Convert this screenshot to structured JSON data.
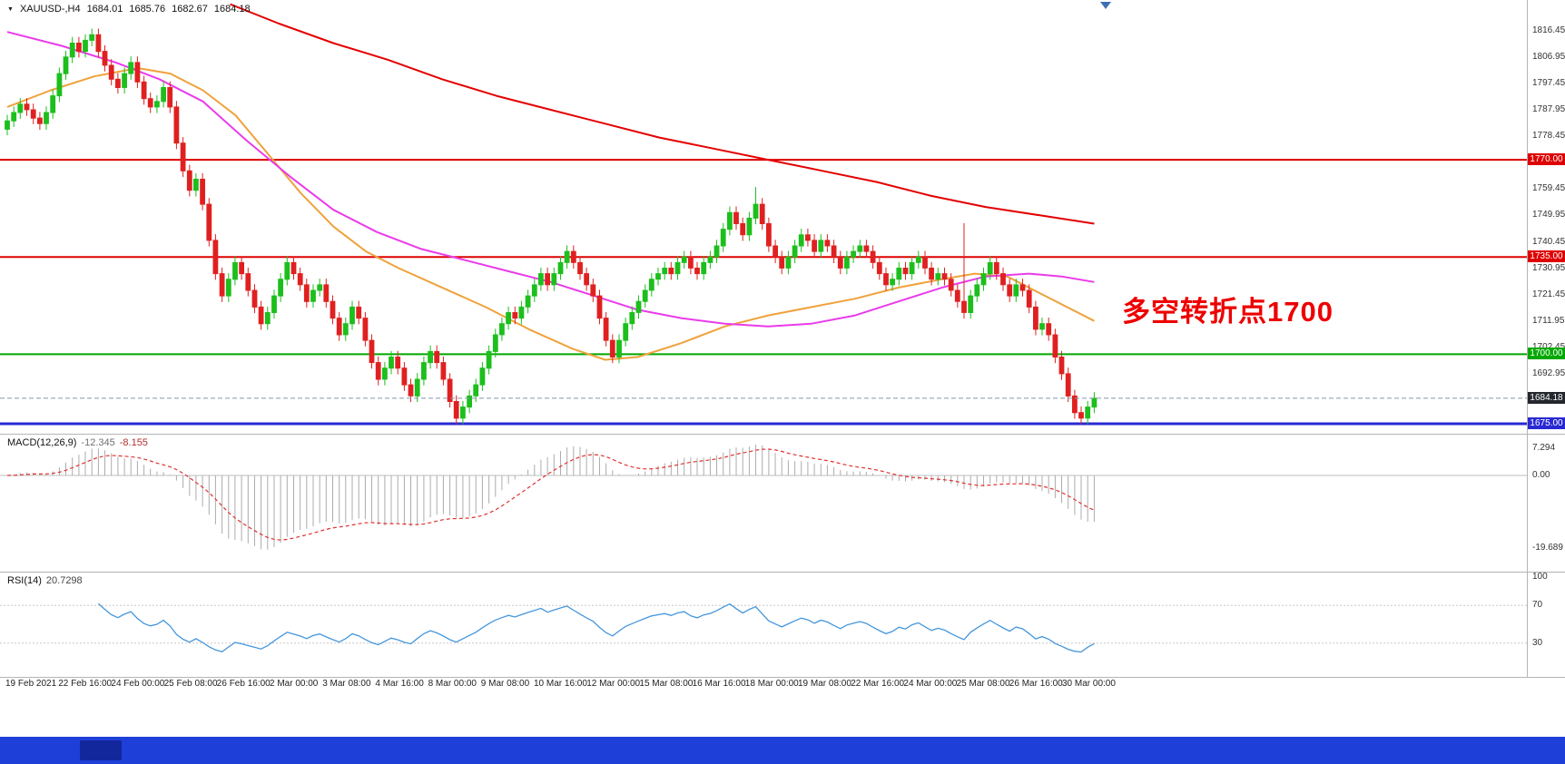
{
  "header": {
    "symbol_period": "XAUUSD-,H4",
    "open": "1684.01",
    "high": "1685.76",
    "low": "1682.67",
    "close": "1684.18"
  },
  "indicators": {
    "macd_name": "MACD(12,26,9)",
    "macd_value": "-12.345",
    "macd_signal": "-8.155",
    "rsi_name": "RSI(14)",
    "rsi_value": "20.7298"
  },
  "annotation": {
    "text": "多空转折点1700",
    "color": "#ED0000"
  },
  "bottom_bar": {
    "color": "#1E3FD8",
    "item_color": "#12279B"
  },
  "chart_data": [
    {
      "type": "candlestick",
      "title": "XAUUSD- H4",
      "instrument": "XAUUSD-",
      "timeframe": "H4",
      "ohlc_display": {
        "open": 1684.01,
        "high": 1685.76,
        "low": 1682.67,
        "close": 1684.18
      },
      "ylim": [
        1671.4,
        1827.5
      ],
      "y_ticks": [
        1816.45,
        1806.95,
        1797.45,
        1787.95,
        1778.45,
        1759.45,
        1749.95,
        1740.45,
        1730.95,
        1721.45,
        1711.95,
        1702.45,
        1692.95
      ],
      "x_labels": [
        "19 Feb 2021",
        "22 Feb 16:00",
        "24 Feb 00:00",
        "25 Feb 08:00",
        "26 Feb 16:00",
        "2 Mar 00:00",
        "3 Mar 08:00",
        "4 Mar 16:00",
        "8 Mar 00:00",
        "9 Mar 08:00",
        "10 Mar 16:00",
        "12 Mar 00:00",
        "15 Mar 08:00",
        "16 Mar 16:00",
        "18 Mar 00:00",
        "19 Mar 08:00",
        "22 Mar 16:00",
        "24 Mar 00:00",
        "25 Mar 08:00",
        "26 Mar 16:00",
        "30 Mar 00:00"
      ],
      "first_open": 1781,
      "default_wick": 2.2,
      "extra_wicks": {
        "115": [
          4,
          0
        ],
        "147": [
          26,
          0
        ]
      },
      "closes": [
        1784,
        1787,
        1790,
        1788,
        1785,
        1783,
        1787,
        1793,
        1801,
        1807,
        1812,
        1809,
        1813,
        1815,
        1809,
        1804,
        1799,
        1796,
        1801,
        1805,
        1798,
        1792,
        1789,
        1791,
        1796,
        1789,
        1776,
        1766,
        1759,
        1763,
        1754,
        1741,
        1729,
        1721,
        1727,
        1733,
        1729,
        1723,
        1717,
        1711,
        1715,
        1721,
        1727,
        1733,
        1729,
        1725,
        1719,
        1723,
        1725,
        1719,
        1713,
        1707,
        1711,
        1717,
        1713,
        1705,
        1697,
        1691,
        1695,
        1699,
        1695,
        1689,
        1685,
        1691,
        1697,
        1701,
        1697,
        1691,
        1683,
        1677,
        1681,
        1685,
        1689,
        1695,
        1701,
        1707,
        1711,
        1715,
        1713,
        1717,
        1721,
        1725,
        1729,
        1725,
        1729,
        1733,
        1737,
        1733,
        1729,
        1725,
        1721,
        1713,
        1705,
        1699,
        1705,
        1711,
        1715,
        1719,
        1723,
        1727,
        1729,
        1731,
        1729,
        1733,
        1735,
        1731,
        1729,
        1733,
        1735,
        1739,
        1745,
        1751,
        1747,
        1743,
        1749,
        1754,
        1747,
        1739,
        1735,
        1731,
        1735,
        1739,
        1743,
        1741,
        1737,
        1741,
        1739,
        1735,
        1731,
        1735,
        1737,
        1739,
        1737,
        1733,
        1729,
        1725,
        1727,
        1731,
        1729,
        1733,
        1735,
        1731,
        1727,
        1729,
        1727,
        1723,
        1719,
        1715,
        1721,
        1725,
        1729,
        1733,
        1729,
        1725,
        1721,
        1725,
        1723,
        1717,
        1709,
        1711,
        1707,
        1699,
        1693,
        1685,
        1679,
        1677,
        1681,
        1684.18
      ],
      "candle_colors": {
        "bull": "#1CBF1C",
        "bear": "#E02020"
      },
      "levels": [
        {
          "price": 1770.0,
          "label": "1770.00",
          "color": "#DE0000",
          "width": 2
        },
        {
          "price": 1735.0,
          "label": "1735.00",
          "color": "#DE0000",
          "width": 2
        },
        {
          "price": 1700.0,
          "label": "1700.00",
          "color": "#00A800",
          "width": 2
        },
        {
          "price": 1675.0,
          "label": "1675.00",
          "color": "#2929D4",
          "width": 3
        }
      ],
      "current_price": {
        "price": 1684.18,
        "label": "1684.18",
        "line_color": "#8496AA",
        "tag_color": "#24272B"
      },
      "moving_averages": [
        {
          "name": "ma-fast-orange",
          "color": "#EFA23B",
          "anchors": [
            [
              0,
              1789
            ],
            [
              0.04,
              1795
            ],
            [
              0.08,
              1800
            ],
            [
              0.12,
              1803
            ],
            [
              0.15,
              1801
            ],
            [
              0.18,
              1795
            ],
            [
              0.21,
              1786
            ],
            [
              0.24,
              1772
            ],
            [
              0.27,
              1758
            ],
            [
              0.3,
              1746
            ],
            [
              0.33,
              1737
            ],
            [
              0.36,
              1731
            ],
            [
              0.4,
              1724
            ],
            [
              0.44,
              1717
            ],
            [
              0.48,
              1709
            ],
            [
              0.52,
              1702
            ],
            [
              0.55,
              1698
            ],
            [
              0.58,
              1699
            ],
            [
              0.62,
              1704
            ],
            [
              0.66,
              1710
            ],
            [
              0.7,
              1714
            ],
            [
              0.74,
              1717
            ],
            [
              0.78,
              1720
            ],
            [
              0.82,
              1724
            ],
            [
              0.86,
              1727
            ],
            [
              0.89,
              1729
            ],
            [
              0.92,
              1728
            ],
            [
              0.95,
              1722
            ],
            [
              1,
              1712
            ]
          ]
        },
        {
          "name": "ma-mid-magenta",
          "color": "#EA3BEA",
          "anchors": [
            [
              0,
              1816
            ],
            [
              0.05,
              1811
            ],
            [
              0.1,
              1805
            ],
            [
              0.14,
              1799
            ],
            [
              0.18,
              1791
            ],
            [
              0.22,
              1777
            ],
            [
              0.26,
              1764
            ],
            [
              0.3,
              1752
            ],
            [
              0.34,
              1744
            ],
            [
              0.38,
              1738
            ],
            [
              0.42,
              1734
            ],
            [
              0.46,
              1730
            ],
            [
              0.5,
              1726
            ],
            [
              0.54,
              1721
            ],
            [
              0.58,
              1716
            ],
            [
              0.62,
              1713
            ],
            [
              0.66,
              1711
            ],
            [
              0.7,
              1710
            ],
            [
              0.74,
              1711
            ],
            [
              0.78,
              1714
            ],
            [
              0.82,
              1719
            ],
            [
              0.86,
              1724
            ],
            [
              0.9,
              1728
            ],
            [
              0.94,
              1729
            ],
            [
              0.97,
              1728
            ],
            [
              1,
              1726
            ]
          ]
        },
        {
          "name": "ma-slow-red",
          "color": "#E40000",
          "anchors": [
            [
              0.205,
              1826
            ],
            [
              0.25,
              1819
            ],
            [
              0.3,
              1812
            ],
            [
              0.35,
              1806
            ],
            [
              0.4,
              1799
            ],
            [
              0.45,
              1793
            ],
            [
              0.5,
              1788
            ],
            [
              0.55,
              1783
            ],
            [
              0.6,
              1778
            ],
            [
              0.65,
              1774
            ],
            [
              0.7,
              1770
            ],
            [
              0.75,
              1766
            ],
            [
              0.8,
              1762
            ],
            [
              0.85,
              1757
            ],
            [
              0.9,
              1753
            ],
            [
              0.95,
              1750
            ],
            [
              1,
              1747
            ]
          ]
        }
      ]
    },
    {
      "type": "macd_histogram",
      "label": "MACD(12,26,9)",
      "params": [
        12,
        26,
        9
      ],
      "value": -12.345,
      "signal_value": -8.155,
      "y_ticks": [
        7.294,
        0,
        -19.689
      ],
      "hist_color": "#ACACAC",
      "signal_color": "#E03030",
      "derived_from": "closes"
    },
    {
      "type": "rsi_line",
      "label": "RSI(14)",
      "period": 14,
      "value": 20.7298,
      "y_ticks": [
        100,
        70,
        30
      ],
      "guides": [
        70,
        30
      ],
      "line_color": "#4496DC",
      "derived_from": "closes"
    }
  ]
}
